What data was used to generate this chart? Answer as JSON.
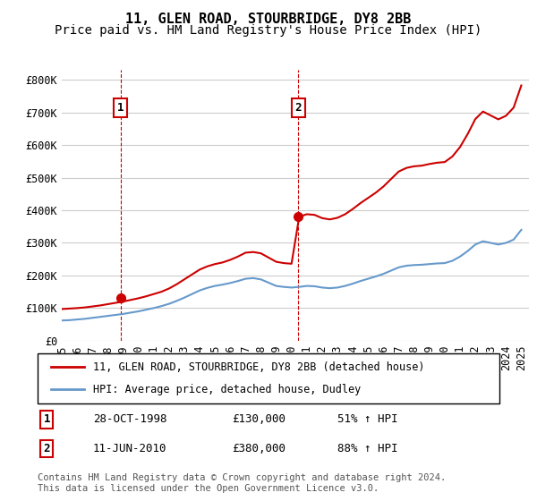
{
  "title": "11, GLEN ROAD, STOURBRIDGE, DY8 2BB",
  "subtitle": "Price paid vs. HM Land Registry's House Price Index (HPI)",
  "ylabel_ticks": [
    0,
    100000,
    200000,
    300000,
    400000,
    500000,
    600000,
    700000,
    800000
  ],
  "ylabel_labels": [
    "£0",
    "£100K",
    "£200K",
    "£300K",
    "£400K",
    "£500K",
    "£600K",
    "£700K",
    "£800K"
  ],
  "xlim": [
    1995.0,
    2025.5
  ],
  "ylim": [
    0,
    830000
  ],
  "sale1_x": 1998.83,
  "sale1_y": 130000,
  "sale1_label": "1",
  "sale2_x": 2010.44,
  "sale2_y": 380000,
  "sale2_label": "2",
  "red_line_color": "#cc0000",
  "blue_line_color": "#6699cc",
  "marker_face_color": "#cc0000",
  "vline_color": "#cc0000",
  "background_color": "#ffffff",
  "grid_color": "#cccccc",
  "title_fontsize": 11,
  "subtitle_fontsize": 10,
  "tick_fontsize": 8.5,
  "legend_label1": "11, GLEN ROAD, STOURBRIDGE, DY8 2BB (detached house)",
  "legend_label2": "HPI: Average price, detached house, Dudley",
  "table_row1": [
    "1",
    "28-OCT-1998",
    "£130,000",
    "51% ↑ HPI"
  ],
  "table_row2": [
    "2",
    "11-JUN-2010",
    "£380,000",
    "88% ↑ HPI"
  ],
  "footer": "Contains HM Land Registry data © Crown copyright and database right 2024.\nThis data is licensed under the Open Government Licence v3.0.",
  "hpi_years": [
    1995,
    1995.5,
    1996,
    1996.5,
    1997,
    1997.5,
    1998,
    1998.5,
    1999,
    1999.5,
    2000,
    2000.5,
    2001,
    2001.5,
    2002,
    2002.5,
    2003,
    2003.5,
    2004,
    2004.5,
    2005,
    2005.5,
    2006,
    2006.5,
    2007,
    2007.5,
    2008,
    2008.5,
    2009,
    2009.5,
    2010,
    2010.5,
    2011,
    2011.5,
    2012,
    2012.5,
    2013,
    2013.5,
    2014,
    2014.5,
    2015,
    2015.5,
    2016,
    2016.5,
    2017,
    2017.5,
    2018,
    2018.5,
    2019,
    2019.5,
    2020,
    2020.5,
    2021,
    2021.5,
    2022,
    2022.5,
    2023,
    2023.5,
    2024,
    2024.5,
    2025
  ],
  "hpi_values": [
    62000,
    63000,
    65000,
    67000,
    70000,
    73000,
    76000,
    79000,
    82000,
    86000,
    90000,
    95000,
    100000,
    106000,
    113000,
    122000,
    132000,
    143000,
    154000,
    162000,
    168000,
    172000,
    177000,
    183000,
    190000,
    192000,
    188000,
    178000,
    168000,
    165000,
    163000,
    165000,
    168000,
    167000,
    163000,
    161000,
    163000,
    168000,
    175000,
    183000,
    190000,
    197000,
    205000,
    215000,
    225000,
    230000,
    232000,
    233000,
    235000,
    237000,
    238000,
    245000,
    258000,
    275000,
    295000,
    305000,
    300000,
    295000,
    300000,
    310000,
    340000
  ],
  "red_years": [
    1995,
    1995.5,
    1996,
    1996.5,
    1997,
    1997.5,
    1998,
    1998.5,
    1999,
    1999.5,
    2000,
    2000.5,
    2001,
    2001.5,
    2002,
    2002.5,
    2003,
    2003.5,
    2004,
    2004.5,
    2005,
    2005.5,
    2006,
    2006.5,
    2007,
    2007.5,
    2008,
    2008.5,
    2009,
    2009.5,
    2010,
    2010.5,
    2011,
    2011.5,
    2012,
    2012.5,
    2013,
    2013.5,
    2014,
    2014.5,
    2015,
    2015.5,
    2016,
    2016.5,
    2017,
    2017.5,
    2018,
    2018.5,
    2019,
    2019.5,
    2020,
    2020.5,
    2021,
    2021.5,
    2022,
    2022.5,
    2023,
    2023.5,
    2024,
    2024.5,
    2025
  ],
  "red_values": [
    97000,
    98500,
    100000,
    102000,
    105000,
    108000,
    112000,
    116000,
    120000,
    125000,
    130000,
    136000,
    143000,
    150000,
    160000,
    173000,
    188000,
    203000,
    218000,
    228000,
    235000,
    240000,
    248000,
    258000,
    270000,
    272000,
    268000,
    255000,
    242000,
    238000,
    236000,
    380000,
    388000,
    386000,
    376000,
    372000,
    377000,
    388000,
    404000,
    422000,
    438000,
    454000,
    473000,
    496000,
    519000,
    530000,
    535000,
    537000,
    542000,
    546000,
    548000,
    565000,
    594000,
    634000,
    680000,
    703000,
    691000,
    679000,
    690000,
    715000,
    783000
  ]
}
